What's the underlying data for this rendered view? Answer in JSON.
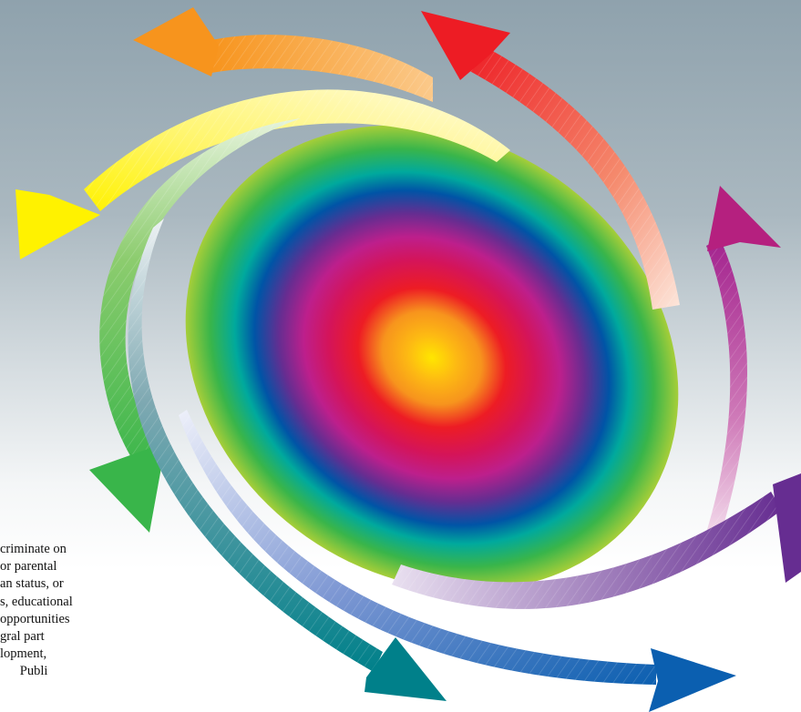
{
  "text_block": {
    "lines": [
      "criminate on",
      "or parental",
      "an status, or",
      "s, educational",
      "opportunities",
      "gral part",
      "lopment,",
      "      Publi"
    ]
  },
  "colors": {
    "background_top": "#8fa2ad",
    "background_bottom": "#ffffff",
    "orb_center": "#ffe600",
    "orb_ring_orange": "#f7941d",
    "orb_ring_red": "#ed1c24",
    "orb_ring_magenta": "#bd1f8c",
    "orb_ring_purple": "#662d91",
    "orb_ring_blue": "#0054a6",
    "orb_ring_teal": "#00a99d",
    "orb_ring_green": "#39b54a",
    "orb_edge": "#a6ce39"
  },
  "decorations": [
    {
      "name": "orange-arrow-icon",
      "color": "#f7941d"
    },
    {
      "name": "red-arrow-icon",
      "color": "#ed1c24"
    },
    {
      "name": "yellow-arrow-icon",
      "color": "#fff200"
    },
    {
      "name": "magenta-arrow-icon",
      "color": "#b5207f"
    },
    {
      "name": "green-arrow-icon",
      "color": "#39b54a"
    },
    {
      "name": "purple-arrow-icon",
      "color": "#662d91"
    },
    {
      "name": "teal-arrow-icon",
      "color": "#00808a"
    },
    {
      "name": "blue-arrow-icon",
      "color": "#0b5fb0"
    }
  ]
}
